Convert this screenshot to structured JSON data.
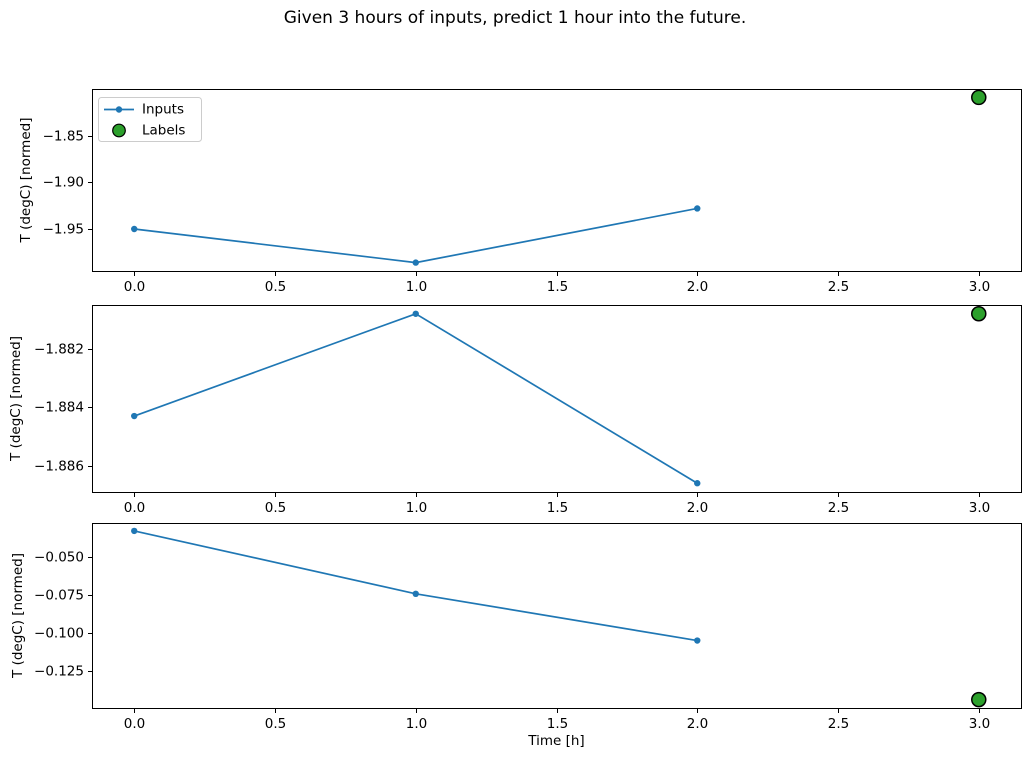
{
  "figure": {
    "title": "Given 3 hours of inputs, predict 1 hour into the future.",
    "background": "#ffffff"
  },
  "colors": {
    "inputs_line": "#1f77b4",
    "labels_fill": "#2ca02c",
    "labels_edge": "#000000",
    "axis": "#000000",
    "legend_border": "#cccccc",
    "text": "#000000"
  },
  "chart_data": [
    {
      "type": "line",
      "title": "",
      "xlabel": "",
      "ylabel": "T (degC) [normed]",
      "grid": false,
      "xlim": [
        -0.15,
        3.15
      ],
      "ylim": [
        -1.995,
        -1.8
      ],
      "x_ticks": [
        0,
        0.5,
        1,
        1.5,
        2,
        2.5,
        3
      ],
      "x_tick_labels": [
        "0.0",
        "0.5",
        "1.0",
        "1.5",
        "2.0",
        "2.5",
        "3.0"
      ],
      "y_ticks": [
        -1.85,
        -1.9,
        -1.95
      ],
      "y_tick_labels": [
        "−1.85",
        "−1.90",
        "−1.95"
      ],
      "legend": {
        "visible": true,
        "position": "upper left",
        "entries": [
          "Inputs",
          "Labels"
        ]
      },
      "series": [
        {
          "name": "Inputs",
          "type": "line+marker",
          "color": "#1f77b4",
          "x": [
            0,
            1,
            2
          ],
          "y": [
            -1.95,
            -1.986,
            -1.928
          ]
        },
        {
          "name": "Labels",
          "type": "scatter",
          "color": "#2ca02c",
          "edge_color": "#000000",
          "x": [
            3
          ],
          "y": [
            -1.809
          ]
        }
      ]
    },
    {
      "type": "line",
      "title": "",
      "xlabel": "",
      "ylabel": "T (degC) [normed]",
      "grid": false,
      "xlim": [
        -0.15,
        3.15
      ],
      "ylim": [
        -1.8869,
        -1.8805
      ],
      "x_ticks": [
        0,
        0.5,
        1,
        1.5,
        2,
        2.5,
        3
      ],
      "x_tick_labels": [
        "0.0",
        "0.5",
        "1.0",
        "1.5",
        "2.0",
        "2.5",
        "3.0"
      ],
      "y_ticks": [
        -1.882,
        -1.884,
        -1.886
      ],
      "y_tick_labels": [
        "−1.882",
        "−1.884",
        "−1.886"
      ],
      "legend": {
        "visible": false
      },
      "series": [
        {
          "name": "Inputs",
          "type": "line+marker",
          "color": "#1f77b4",
          "x": [
            0,
            1,
            2
          ],
          "y": [
            -1.8843,
            -1.8808,
            -1.8866
          ]
        },
        {
          "name": "Labels",
          "type": "scatter",
          "color": "#2ca02c",
          "edge_color": "#000000",
          "x": [
            3
          ],
          "y": [
            -1.8808
          ]
        }
      ]
    },
    {
      "type": "line",
      "title": "",
      "xlabel": "Time [h]",
      "ylabel": "T (degC) [normed]",
      "grid": false,
      "xlim": [
        -0.15,
        3.15
      ],
      "ylim": [
        -0.1493,
        -0.0278
      ],
      "x_ticks": [
        0,
        0.5,
        1,
        1.5,
        2,
        2.5,
        3
      ],
      "x_tick_labels": [
        "0.0",
        "0.5",
        "1.0",
        "1.5",
        "2.0",
        "2.5",
        "3.0"
      ],
      "y_ticks": [
        -0.05,
        -0.075,
        -0.1,
        -0.125
      ],
      "y_tick_labels": [
        "−0.050",
        "−0.075",
        "−0.100",
        "−0.125"
      ],
      "legend": {
        "visible": false
      },
      "series": [
        {
          "name": "Inputs",
          "type": "line+marker",
          "color": "#1f77b4",
          "x": [
            0,
            1,
            2
          ],
          "y": [
            -0.033,
            -0.0743,
            -0.105
          ]
        },
        {
          "name": "Labels",
          "type": "scatter",
          "color": "#2ca02c",
          "edge_color": "#000000",
          "x": [
            3
          ],
          "y": [
            -0.1438
          ]
        }
      ]
    }
  ]
}
